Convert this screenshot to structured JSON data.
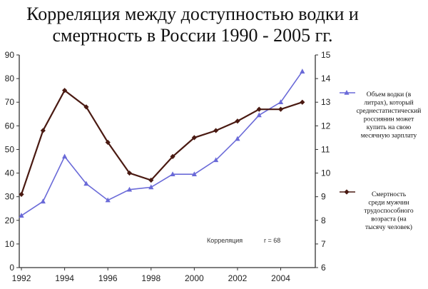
{
  "chart_data": {
    "type": "line",
    "title": "Корреляция между доступностью водки и смертность в России 1990 - 2005 гг.",
    "title_lines": [
      "Корреляция между доступностью водки и",
      "смертность в России 1990 - 2005 гг."
    ],
    "x": [
      1992,
      1993,
      1994,
      1995,
      1996,
      1997,
      1998,
      1999,
      2000,
      2001,
      2002,
      2003,
      2004,
      2005
    ],
    "xticks": [
      "1992",
      "1994",
      "1996",
      "1998",
      "2000",
      "2002",
      "2004"
    ],
    "xlim": [
      1991.9,
      2005.6
    ],
    "y_left": {
      "lim": [
        0,
        90
      ],
      "ticks": [
        "0",
        "10",
        "20",
        "30",
        "40",
        "50",
        "60",
        "70",
        "80",
        "90"
      ]
    },
    "y_right": {
      "lim": [
        6,
        15
      ],
      "ticks": [
        "6",
        "7",
        "8",
        "9",
        "10",
        "11",
        "12",
        "13",
        "14",
        "15"
      ]
    },
    "series": [
      {
        "name": "Объем водки (в литрах), который среднестатистический россиянин может купить на свою месячную зарплату",
        "legend_lines": [
          "Объем водки (в",
          "литрах), который",
          "среднестатистический",
          "россиянин может",
          "купить на свою",
          "месячную зарплату"
        ],
        "axis": "left",
        "color": "#6a6ad8",
        "marker": "triangle",
        "values": [
          22,
          28,
          47,
          35.5,
          28.5,
          33,
          34,
          39.5,
          39.5,
          45.5,
          54.5,
          64.5,
          70,
          83
        ]
      },
      {
        "name": "Смертность среди мужчин трудоспособного возраста (на тысячу человек)",
        "legend_lines": [
          "Смертность",
          "среди мужчин",
          "трудоспособного",
          "возраста (на",
          "тысячу человек)"
        ],
        "axis": "right",
        "color": "#4a1a12",
        "marker": "diamond",
        "values": [
          9.1,
          11.8,
          13.5,
          12.8,
          11.3,
          10.0,
          9.7,
          10.7,
          11.5,
          11.8,
          12.2,
          12.7,
          12.7,
          13.0
        ]
      }
    ],
    "annotation": {
      "label": "Корреляция",
      "value": "r = 68"
    },
    "grid": false,
    "legend_position": "right"
  }
}
